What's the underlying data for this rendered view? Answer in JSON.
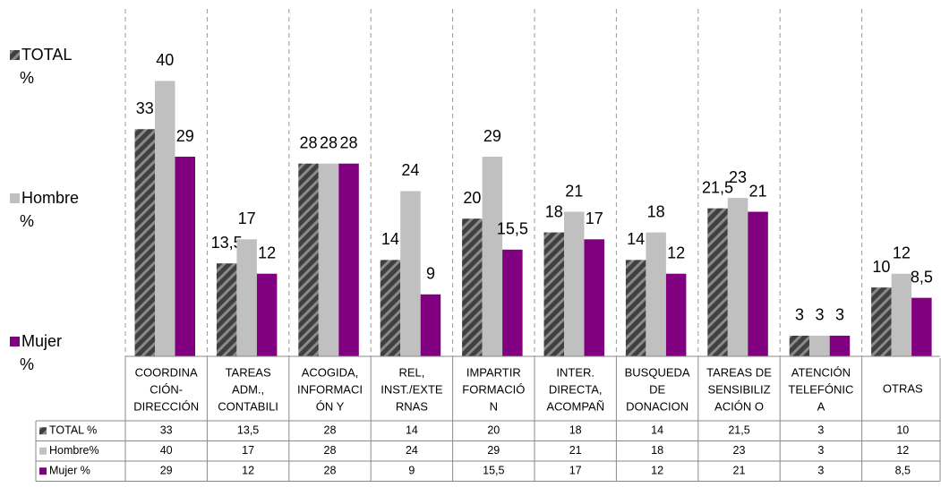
{
  "chart_data": {
    "type": "bar",
    "categories": [
      [
        "COORDINA",
        "CIÓN-",
        "DIRECCIÓN"
      ],
      [
        "TAREAS",
        "ADM.,",
        "CONTABILI"
      ],
      [
        "ACOGIDA,",
        "INFORMACI",
        "ÓN Y"
      ],
      [
        "REL,",
        "INST./EXTE",
        "RNAS"
      ],
      [
        "IMPARTIR",
        "FORMACIÓ",
        "N"
      ],
      [
        "INTER.",
        "DIRECTA,",
        "ACOMPAÑ"
      ],
      [
        "BUSQUEDA",
        "DE",
        "DONACION"
      ],
      [
        "TAREAS DE",
        "SENSIBILIZ",
        "ACIÓN O"
      ],
      [
        "ATENCIÓN",
        "TELEFÓNIC",
        "A"
      ],
      [
        "OTRAS"
      ]
    ],
    "series": [
      {
        "name": [
          "TOTAL",
          "%"
        ],
        "table_label": "TOTAL %",
        "color": "#404040",
        "hatch": true,
        "values": [
          33,
          13.5,
          28,
          14,
          20,
          18,
          14,
          21.5,
          3,
          10
        ],
        "value_labels": [
          "33",
          "13,5",
          "28",
          "14",
          "20",
          "18",
          "14",
          "21,5",
          "3",
          "10"
        ]
      },
      {
        "name": [
          "Hombre",
          "%"
        ],
        "table_label": "Hombre%",
        "color": "#c0c0c0",
        "hatch": false,
        "values": [
          40,
          17,
          28,
          24,
          29,
          21,
          18,
          23,
          3,
          12
        ],
        "value_labels": [
          "40",
          "17",
          "28",
          "24",
          "29",
          "21",
          "18",
          "23",
          "3",
          "12"
        ]
      },
      {
        "name": [
          "Mujer",
          "%"
        ],
        "table_label": "Mujer  %",
        "color": "#800080",
        "hatch": false,
        "values": [
          29,
          12,
          28,
          9,
          15.5,
          17,
          12,
          21,
          3,
          8.5
        ],
        "value_labels": [
          "29",
          "12",
          "28",
          "9",
          "15,5",
          "17",
          "12",
          "21",
          "3",
          "8,5"
        ]
      }
    ],
    "ylim": [
      0,
      45
    ]
  }
}
